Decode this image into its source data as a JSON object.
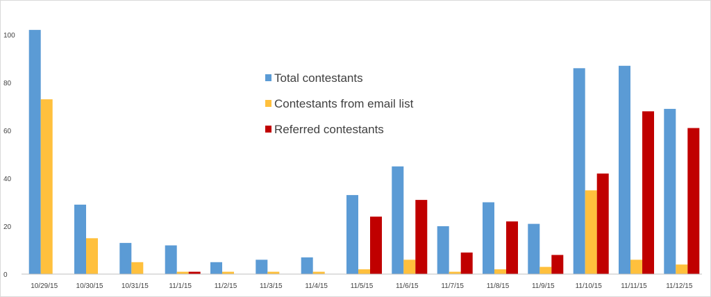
{
  "chart_data": {
    "type": "bar",
    "title": "",
    "xlabel": "",
    "ylabel": "",
    "ylim": [
      0,
      110
    ],
    "yticks": [
      0,
      20,
      40,
      60,
      80,
      100
    ],
    "grid": false,
    "legend_position": "center",
    "categories": [
      "10/29/15",
      "10/30/15",
      "10/31/15",
      "11/1/15",
      "11/2/15",
      "11/3/15",
      "11/4/15",
      "11/5/15",
      "11/6/15",
      "11/7/15",
      "11/8/15",
      "11/9/15",
      "11/10/15",
      "11/11/15",
      "11/12/15"
    ],
    "series": [
      {
        "name": "Total contestants",
        "color": "#5b9bd5",
        "values": [
          102,
          29,
          13,
          12,
          5,
          6,
          7,
          33,
          45,
          20,
          30,
          21,
          86,
          87,
          69
        ]
      },
      {
        "name": "Contestants from email list",
        "color": "#ffc03d",
        "values": [
          73,
          15,
          5,
          1,
          1,
          1,
          1,
          2,
          6,
          1,
          2,
          3,
          35,
          6,
          4
        ]
      },
      {
        "name": "Referred contestants",
        "color": "#c00000",
        "values": [
          0,
          0,
          0,
          1,
          0,
          0,
          0,
          24,
          31,
          9,
          22,
          8,
          42,
          68,
          61
        ]
      }
    ]
  }
}
